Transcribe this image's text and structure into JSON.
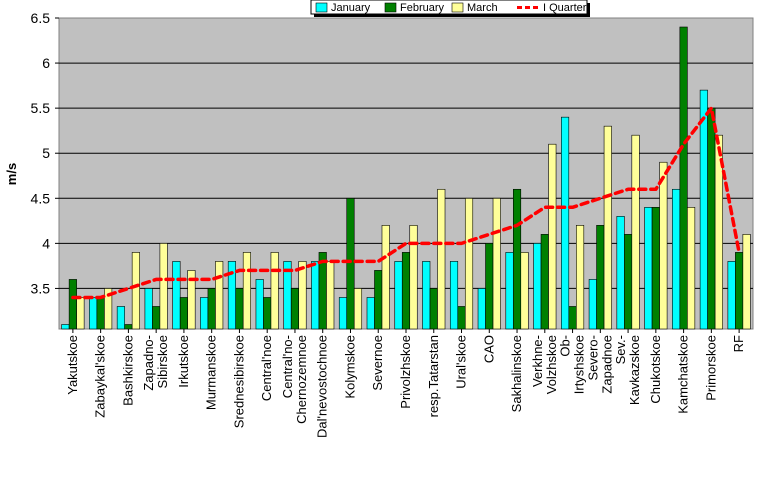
{
  "chart_data": {
    "type": "bar",
    "ylabel": "m/s",
    "xlabel": "",
    "ylim": [
      3.05,
      6.5
    ],
    "yticks": [
      "3.5",
      "4",
      "4.5",
      "5",
      "5.5",
      "6",
      "6.5"
    ],
    "grid": true,
    "legend_position": "top",
    "categories": [
      "Yakutskoe",
      "Zabaykal'skoe",
      "Bashkirskoe",
      "Zapadno-Sibirskoe",
      "Irkutskoe",
      "Murmanskoe",
      "Srednesibirskoe",
      "Central'noe",
      "Central'no-Chernozemnoe",
      "Dal'nevostochnoe",
      "Kolymskoe",
      "Severnoe",
      "Privolzhskoe",
      "resp.Tatarstan",
      "Ural'skoe",
      "CAO",
      "Sakhalinskoe",
      "Verkhne-Volzhskoe",
      "Ob-Irtyshskoe",
      "Severo-Zapadnoe",
      "Sev.-Kavkazskoe",
      "Chukotskoe",
      "Kamchatskoe",
      "Primorskoe",
      "RF"
    ],
    "series": [
      {
        "name": "January",
        "type": "bar",
        "color": "#00FFFF",
        "values": [
          3.1,
          3.4,
          3.3,
          3.5,
          3.8,
          3.4,
          3.8,
          3.6,
          3.8,
          3.8,
          3.4,
          3.4,
          3.8,
          3.8,
          3.8,
          3.5,
          3.9,
          4.0,
          5.4,
          3.6,
          4.3,
          4.4,
          4.6,
          5.7,
          3.8
        ]
      },
      {
        "name": "February",
        "type": "bar",
        "color": "#008000",
        "values": [
          3.6,
          3.4,
          3.1,
          3.3,
          3.4,
          3.5,
          3.5,
          3.4,
          3.5,
          3.9,
          4.5,
          3.7,
          3.9,
          3.5,
          3.3,
          4.0,
          4.6,
          4.1,
          3.3,
          4.2,
          4.1,
          4.4,
          6.4,
          5.5,
          3.9
        ]
      },
      {
        "name": "March",
        "type": "bar",
        "color": "#FFFF99",
        "values": [
          3.4,
          3.5,
          3.9,
          4.0,
          3.7,
          3.8,
          3.9,
          3.9,
          3.8,
          3.8,
          3.5,
          4.2,
          4.2,
          4.6,
          4.5,
          4.5,
          3.9,
          5.1,
          4.2,
          5.3,
          5.2,
          4.9,
          4.4,
          5.2,
          4.1
        ]
      },
      {
        "name": "I Quarter",
        "type": "line",
        "color": "#FF0000",
        "values": [
          3.4,
          3.4,
          3.5,
          3.6,
          3.6,
          3.6,
          3.7,
          3.7,
          3.7,
          3.8,
          3.8,
          3.8,
          4.0,
          4.0,
          4.0,
          4.1,
          4.2,
          4.4,
          4.4,
          4.5,
          4.6,
          4.6,
          5.1,
          5.5,
          3.9
        ]
      }
    ]
  }
}
